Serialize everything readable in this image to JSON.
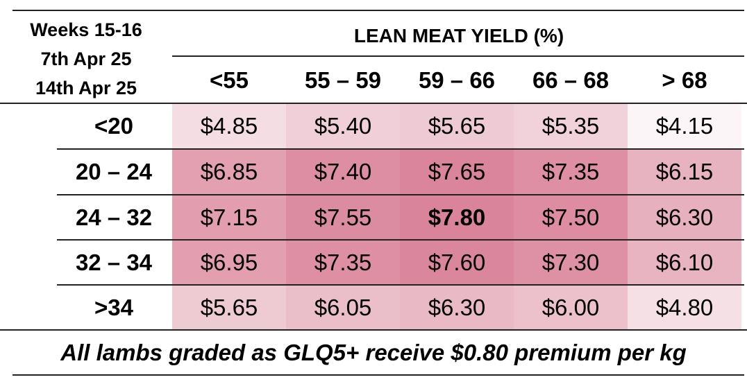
{
  "header": {
    "period_line1": "Weeks 15-16",
    "period_line2": "7th Apr 25",
    "period_line3": "14th Apr 25",
    "group_title": "LEAN MEAT YIELD (%)"
  },
  "columns": [
    "<55",
    "55 – 59",
    "59 – 66",
    "66 – 68",
    "> 68"
  ],
  "rows": [
    {
      "label": "<20",
      "prices": [
        "$4.85",
        "$5.40",
        "$5.65",
        "$5.35",
        "$4.15"
      ]
    },
    {
      "label": "20 – 24",
      "prices": [
        "$6.85",
        "$7.40",
        "$7.65",
        "$7.35",
        "$6.15"
      ]
    },
    {
      "label": "24 – 32",
      "prices": [
        "$7.15",
        "$7.55",
        "$7.80",
        "$7.50",
        "$6.30"
      ]
    },
    {
      "label": "32 – 34",
      "prices": [
        "$6.95",
        "$7.35",
        "$7.60",
        "$7.30",
        "$6.10"
      ]
    },
    {
      "label": ">34",
      "prices": [
        "$5.65",
        "$6.05",
        "$6.30",
        "$6.00",
        "$4.80"
      ]
    }
  ],
  "cell_colors": [
    [
      "#f4dde3",
      "#f0cfd8",
      "#eecad4",
      "#f1d1da",
      "#fcf5f7"
    ],
    [
      "#e3a0b1",
      "#dd8ea3",
      "#da859b",
      "#de8fa4",
      "#e8b3c1"
    ],
    [
      "#e29dae",
      "#dc8ca1",
      "#d9849a",
      "#dd8ca2",
      "#e7b0bf"
    ],
    [
      "#e39fb0",
      "#de8fa4",
      "#da869c",
      "#de90a5",
      "#e8b4c2"
    ],
    [
      "#eecad3",
      "#ebbfca",
      "#e9bac6",
      "#ecc1cc",
      "#f5e0e6"
    ]
  ],
  "highlight_cell": {
    "row": 2,
    "col": 2
  },
  "footer": {
    "note": "All lambs graded as GLQ5+ receive $0.80 premium per kg"
  }
}
